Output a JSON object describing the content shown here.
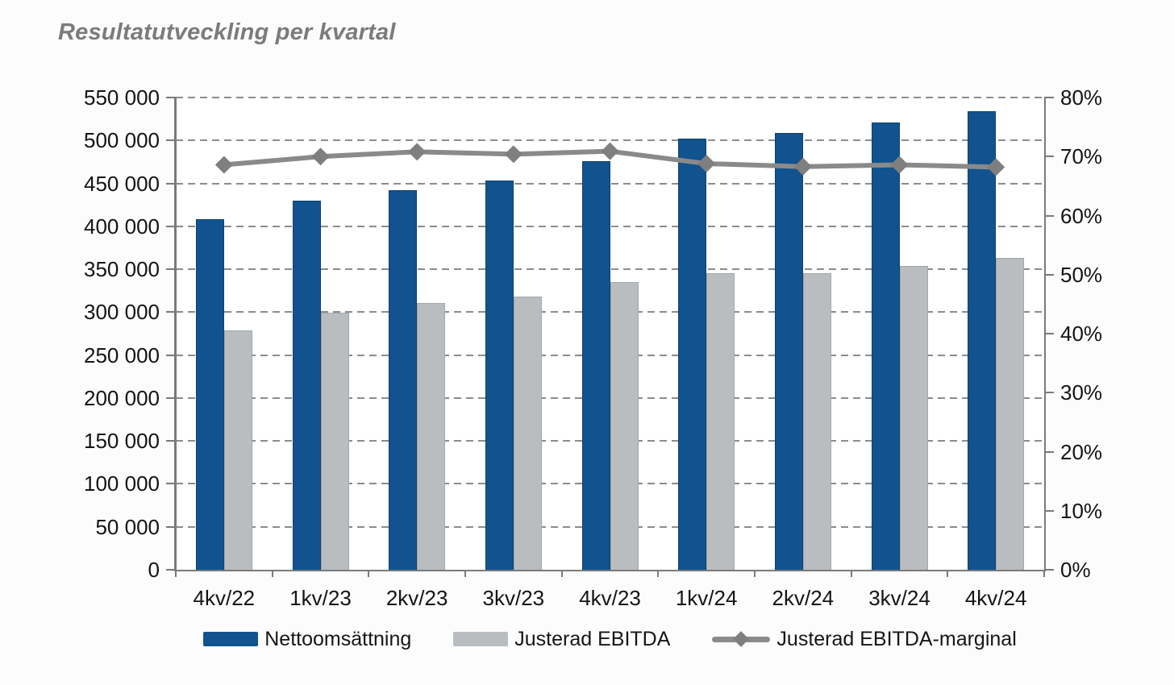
{
  "chart_data": {
    "type": "combo-bar-line",
    "title": "Resultatutveckling per kvartal",
    "categories": [
      "4kv/22",
      "1kv/23",
      "2kv/23",
      "3kv/23",
      "4kv/23",
      "1kv/24",
      "2kv/24",
      "3kv/24",
      "4kv/24"
    ],
    "series": [
      {
        "name": "Nettoomsättning",
        "type": "bar",
        "axis": "left",
        "color": "#11538e",
        "border_color": "#0d416f",
        "values": [
          408000,
          430000,
          442000,
          453000,
          476000,
          502000,
          509000,
          521000,
          534000
        ]
      },
      {
        "name": "Justerad EBITDA",
        "type": "bar",
        "axis": "left",
        "color": "#b9bdbf",
        "border_color": "#a3a7a9",
        "values": [
          279000,
          299000,
          311000,
          318000,
          335000,
          345000,
          345000,
          354000,
          363000
        ]
      },
      {
        "name": "Justerad EBITDA-marginal",
        "type": "line",
        "axis": "right",
        "color": "#8a8a8a",
        "marker": "diamond",
        "marker_color": "#7f7f7f",
        "values": [
          68.6,
          70.0,
          70.8,
          70.4,
          70.9,
          68.8,
          68.3,
          68.6,
          68.2
        ]
      }
    ],
    "left_axis": {
      "min": 0,
      "max": 550000,
      "step": 50000,
      "tick_labels": [
        "0",
        "50 000",
        "100 000",
        "150 000",
        "200 000",
        "250 000",
        "300 000",
        "350 000",
        "400 000",
        "450 000",
        "500 000",
        "550 000"
      ]
    },
    "right_axis": {
      "min": 0,
      "max": 80,
      "step": 10,
      "tick_labels": [
        "0%",
        "10%",
        "20%",
        "30%",
        "40%",
        "50%",
        "60%",
        "70%",
        "80%"
      ]
    },
    "grid": "horizontal-dashed",
    "legend_position": "bottom"
  }
}
